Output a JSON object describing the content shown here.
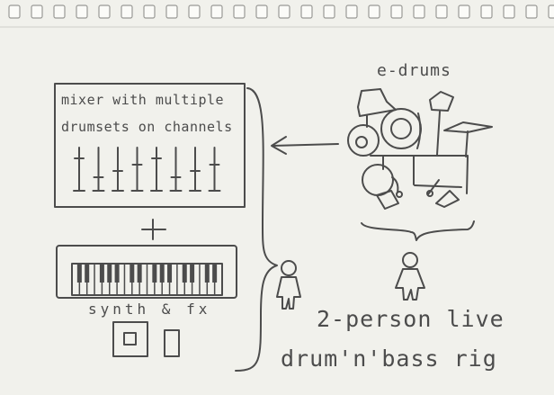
{
  "mixer": {
    "line1": "mixer with multiple",
    "line2": "drumsets on channels",
    "channel_count": 8
  },
  "plus_sign": "+",
  "synth_label": "synth & fx",
  "edrums_label": "e-drums",
  "caption": {
    "line1": "2-person live",
    "line2": "drum'n'bass rig"
  },
  "figures": {
    "people": [
      "person",
      "person"
    ]
  },
  "colors": {
    "paper": "#f1f1ec",
    "pencil": "#4c4c4c",
    "binding": "#d6d6d2"
  }
}
